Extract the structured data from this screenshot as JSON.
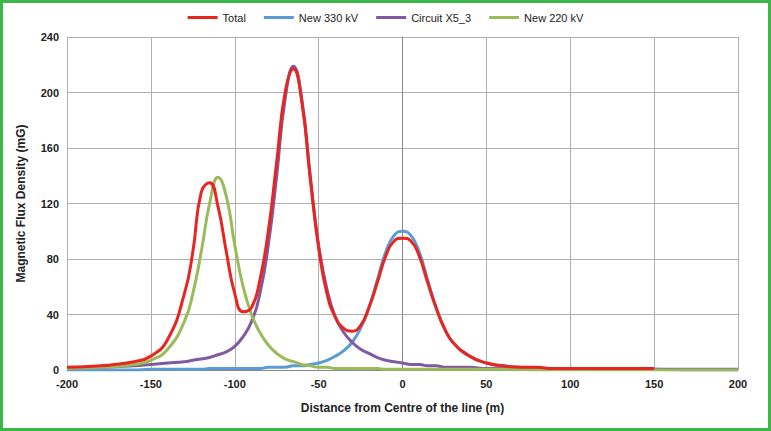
{
  "chart_data": {
    "type": "line",
    "x_label": "Distance from Centre of the line (m)",
    "y_label": "Magnetic Flux Density (mG)",
    "x": [
      -200,
      -180,
      -160,
      -150,
      -140,
      -130,
      -125,
      -120,
      -115,
      -110,
      -105,
      -100,
      -95,
      -90,
      -85,
      -80,
      -75,
      -70,
      -65,
      -60,
      -55,
      -50,
      -45,
      -40,
      -35,
      -30,
      -25,
      -20,
      -15,
      -10,
      -5,
      0,
      5,
      10,
      15,
      20,
      25,
      30,
      40,
      50,
      60,
      70,
      80,
      90,
      100,
      120,
      150,
      175,
      200
    ],
    "series": [
      {
        "name": "Total",
        "color": "#e8261f",
        "values": [
          2,
          3,
          6,
          10,
          22,
          55,
          85,
          128,
          135,
          118,
          85,
          55,
          42,
          45,
          65,
          100,
          150,
          200,
          217,
          193,
          138,
          88,
          55,
          38,
          30,
          28,
          32,
          45,
          63,
          82,
          93,
          95,
          93,
          82,
          63,
          45,
          30,
          20,
          10,
          5,
          3,
          2,
          2,
          1,
          1,
          1,
          1,
          null,
          null
        ]
      },
      {
        "name": "New 330 kV",
        "color": "#5b9bd5",
        "values": [
          0,
          0,
          0,
          0.5,
          0.5,
          0.5,
          0.5,
          0.5,
          1,
          1,
          1,
          1,
          1,
          1,
          1,
          2,
          2,
          2,
          3,
          3,
          4,
          5,
          7,
          10,
          14,
          20,
          30,
          45,
          65,
          85,
          97,
          100,
          97,
          85,
          65,
          45,
          30,
          20,
          10,
          5,
          3,
          2,
          1,
          1,
          1,
          0.5,
          0.5,
          0,
          0
        ]
      },
      {
        "name": "Circuit X5_3",
        "color": "#7f5aa2",
        "values": [
          1,
          2,
          3,
          4,
          5,
          6,
          7,
          8,
          9,
          11,
          13,
          17,
          24,
          35,
          55,
          90,
          140,
          195,
          219,
          195,
          140,
          90,
          58,
          38,
          27,
          20,
          15,
          12,
          9,
          7,
          6,
          5,
          4,
          4,
          3,
          3,
          2,
          2,
          2,
          1,
          1,
          1,
          1,
          1,
          1,
          0.5,
          0.5,
          0.5,
          0.5
        ]
      },
      {
        "name": "New 220 kV",
        "color": "#9bbb59",
        "values": [
          1,
          2,
          4,
          7,
          15,
          35,
          55,
          85,
          120,
          139,
          125,
          90,
          60,
          40,
          27,
          18,
          12,
          8,
          6,
          4,
          3,
          2,
          2,
          1,
          1,
          1,
          1,
          1,
          1,
          0.5,
          0.5,
          0.5,
          0.5,
          0.5,
          0.5,
          0.5,
          0.5,
          0.5,
          0.5,
          0.5,
          0.5,
          0.5,
          0,
          0,
          0,
          0,
          0,
          0,
          0
        ]
      }
    ],
    "xlim": [
      -200,
      200
    ],
    "xticks": [
      -200,
      -150,
      -100,
      -50,
      0,
      50,
      100,
      150,
      200
    ],
    "ylim": [
      0,
      240
    ],
    "yticks": [
      0,
      40,
      80,
      120,
      160,
      200,
      240
    ],
    "grid": true,
    "legend": "top"
  }
}
